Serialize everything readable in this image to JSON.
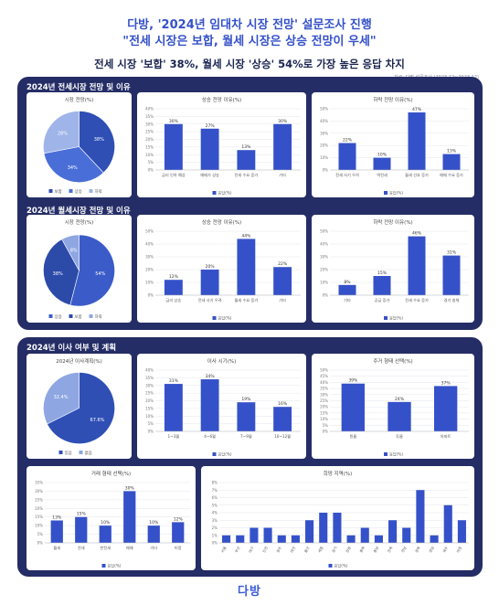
{
  "header": {
    "line1": "다방, '2024년 임대차 시장 전망' 설문조사 진행",
    "line2": "\"전세 시장은 보합, 월세 시장은 상승 전망이 우세\"",
    "line3": "전세 시장 '보합' 38%, 월세 시장 '상승' 54%로 가장 높은 응답 차지",
    "source": "자료: 다방 설문조사 (2023.12~2023.12)"
  },
  "sections": {
    "jeonse": "2024년 전세시장 전망 및 이유",
    "wolse": "2024년 월세시장 전망 및 이유",
    "move": "2024년 이사 여부 및 계획"
  },
  "footer": {
    "logo": "다방"
  },
  "chart_data": [
    {
      "id": "c1",
      "type": "pie",
      "title": "시장 전망(%)",
      "categories": [
        "보합",
        "상승",
        "하락"
      ],
      "values": [
        38,
        34,
        28
      ],
      "labels": [
        "38%",
        "34%",
        "28%"
      ],
      "colors": [
        "#2f4fb5",
        "#4a6ed8",
        "#9fb4e8"
      ],
      "legend": [
        "보합",
        "상승",
        "하락"
      ]
    },
    {
      "id": "c2",
      "type": "bar",
      "title": "상승 전망 이유(%)",
      "categories": [
        "금리 인하 예상",
        "매매가 상승",
        "전세 수요 증가",
        "기타"
      ],
      "values": [
        30,
        27,
        13,
        30
      ],
      "labels": [
        "30%",
        "27%",
        "13%",
        "30%"
      ],
      "yticks": [
        "40%",
        "35%",
        "30%",
        "25%",
        "20%",
        "15%",
        "10%",
        "5%",
        "0%"
      ],
      "ylim": [
        0,
        40
      ],
      "legend": "응답(%)"
    },
    {
      "id": "c3",
      "type": "bar",
      "title": "하락 전망 이유(%)",
      "categories": [
        "전세 사기 우려",
        "역전세",
        "월세 선호 증가",
        "매매 수요 증가"
      ],
      "values": [
        22,
        10,
        47,
        13
      ],
      "labels": [
        "22%",
        "10%",
        "47%",
        "13%"
      ],
      "yticks": [
        "50%",
        "40%",
        "30%",
        "20%",
        "10%",
        "0%"
      ],
      "ylim": [
        0,
        50
      ],
      "legend": "응답(%)"
    },
    {
      "id": "c4",
      "type": "pie",
      "title": "시장 전망(%)",
      "categories": [
        "상승",
        "보합",
        "하락"
      ],
      "values": [
        54,
        38,
        8
      ],
      "labels": [
        "54%",
        "38%",
        "8%"
      ],
      "colors": [
        "#3a5bc8",
        "#2c4aa8",
        "#8ea6e2"
      ],
      "legend": [
        "상승",
        "보합",
        "하락"
      ]
    },
    {
      "id": "c5",
      "type": "bar",
      "title": "상승 전망 이유(%)",
      "categories": [
        "금리 상승",
        "전세 사기 우려",
        "월세 수요 증가",
        "기타"
      ],
      "values": [
        12,
        20,
        44,
        22
      ],
      "labels": [
        "12%",
        "20%",
        "44%",
        "22%"
      ],
      "yticks": [
        "50%",
        "40%",
        "30%",
        "20%",
        "10%",
        "0%"
      ],
      "ylim": [
        0,
        50
      ],
      "legend": "응답(%)"
    },
    {
      "id": "c6",
      "type": "bar",
      "title": "하락 전망 이유(%)",
      "categories": [
        "기타",
        "공급 증가",
        "전세 수요 증가",
        "경기 침체"
      ],
      "values": [
        8,
        15,
        46,
        31
      ],
      "labels": [
        "8%",
        "15%",
        "46%",
        "31%"
      ],
      "yticks": [
        "50%",
        "40%",
        "30%",
        "20%",
        "10%",
        "0%"
      ],
      "ylim": [
        0,
        50
      ],
      "legend": "응답(%)"
    },
    {
      "id": "c7",
      "type": "pie",
      "title": "2024년 이사계획(%)",
      "categories": [
        "있음",
        "없음"
      ],
      "values": [
        67.6,
        32.4
      ],
      "labels": [
        "67.6%",
        "32.4%"
      ],
      "colors": [
        "#2f4fb5",
        "#8ea6e2"
      ],
      "legend": [
        "있음",
        "없음"
      ]
    },
    {
      "id": "c8",
      "type": "bar",
      "title": "이사 시기(%)",
      "categories": [
        "1~3월",
        "4~6월",
        "7~9월",
        "10~12월"
      ],
      "values": [
        31,
        34,
        19,
        16
      ],
      "labels": [
        "31%",
        "34%",
        "19%",
        "16%"
      ],
      "yticks": [
        "40%",
        "35%",
        "30%",
        "25%",
        "20%",
        "15%",
        "10%",
        "5%",
        "0%"
      ],
      "ylim": [
        0,
        40
      ],
      "legend": "응답(%)"
    },
    {
      "id": "c9",
      "type": "bar",
      "title": "주거 형태 선택(%)",
      "categories": [
        "원룸",
        "투룸",
        "아파트"
      ],
      "values": [
        39,
        24,
        37
      ],
      "labels": [
        "39%",
        "24%",
        "37%"
      ],
      "yticks": [
        "50%",
        "45%",
        "40%",
        "35%",
        "30%",
        "25%",
        "20%",
        "15%",
        "10%",
        "5%",
        "0%"
      ],
      "ylim": [
        0,
        50
      ],
      "legend": "응답(%)"
    },
    {
      "id": "c10",
      "type": "bar",
      "title": "거래 형태 선택(%)",
      "categories": [
        "월세",
        "전세",
        "반전세",
        "매매",
        "기타",
        "미정"
      ],
      "values": [
        13,
        15,
        10,
        30,
        10,
        12
      ],
      "labels": [
        "13%",
        "15%",
        "10%",
        "30%",
        "10%",
        "12%"
      ],
      "yticks": [
        "35%",
        "30%",
        "25%",
        "20%",
        "15%",
        "10%",
        "5%",
        "0%"
      ],
      "ylim": [
        0,
        35
      ],
      "legend": "응답(%)"
    },
    {
      "id": "c11",
      "type": "bar",
      "title": "희망 지역(%)",
      "categories": [
        "서울",
        "부산",
        "대구",
        "인천",
        "광주",
        "대전",
        "울산",
        "세종",
        "경기",
        "강원",
        "충북",
        "충남",
        "전북",
        "전남",
        "경북",
        "경남",
        "제주",
        "미정"
      ],
      "values": [
        1,
        1,
        2,
        2,
        1,
        1,
        3,
        4,
        4,
        1,
        2,
        1,
        3,
        2,
        7,
        1,
        5,
        3
      ],
      "labels": [],
      "yticks": [
        "8%",
        "7%",
        "6%",
        "5%",
        "4%",
        "3%",
        "2%",
        "1%",
        "0%"
      ],
      "ylim": [
        0,
        8
      ],
      "legend": "응답(%)"
    }
  ]
}
